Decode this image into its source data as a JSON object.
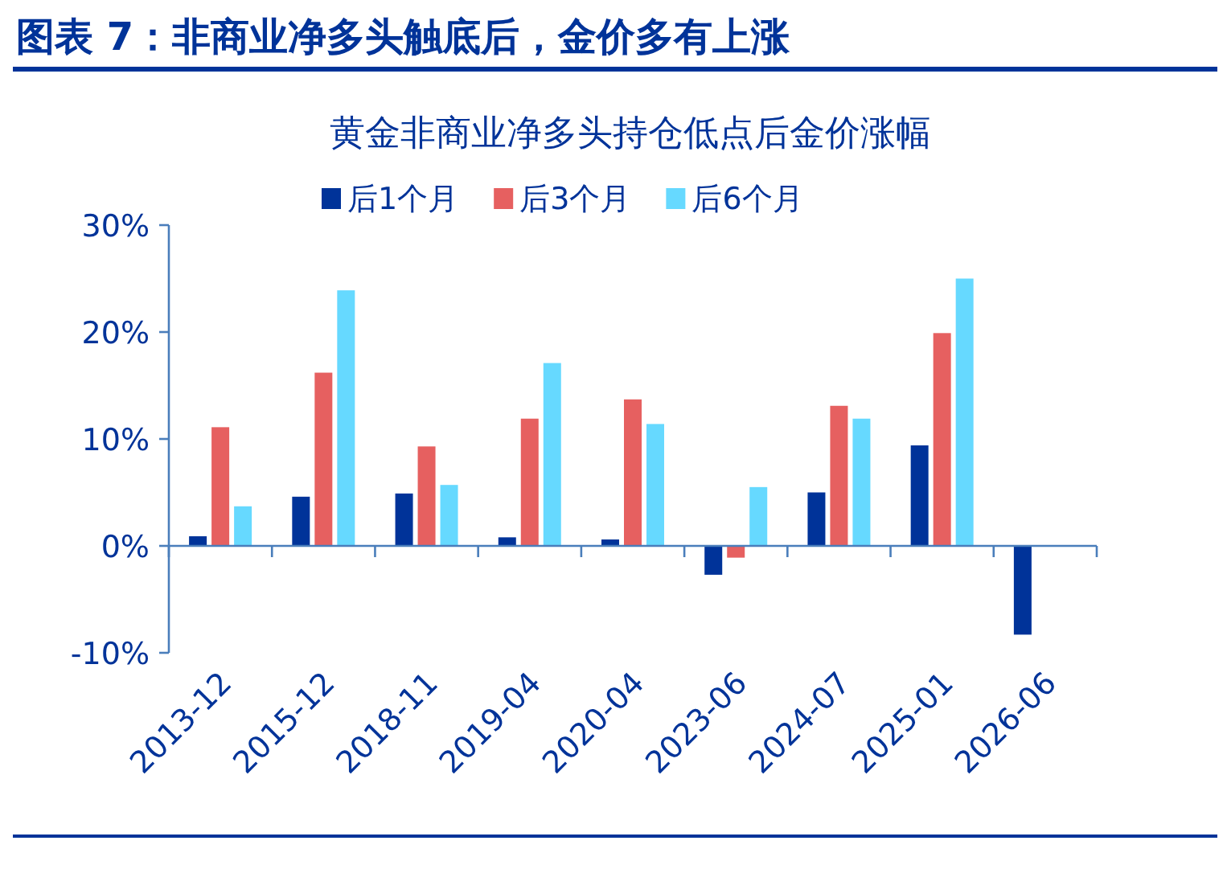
{
  "chart_data": {
    "type": "bar",
    "title": "图表 7：非商业净多头触底后，金价多有上涨",
    "subtitle": "黄金非商业净多头持仓低点后金价涨幅",
    "categories": [
      "2013-12",
      "2015-12",
      "2018-11",
      "2019-04",
      "2020-04",
      "2023-06",
      "2024-07",
      "2025-01",
      "2026-06"
    ],
    "series": [
      {
        "name": "后1个月",
        "color": "#003399",
        "values": [
          0.9,
          4.6,
          4.9,
          0.8,
          0.6,
          -2.7,
          5.0,
          9.4,
          -8.3
        ]
      },
      {
        "name": "后3个月",
        "color": "#e66060",
        "values": [
          11.1,
          16.2,
          9.3,
          11.9,
          13.7,
          -1.1,
          13.1,
          19.9,
          null
        ]
      },
      {
        "name": "后6个月",
        "color": "#66d9ff",
        "values": [
          3.7,
          23.9,
          5.7,
          17.1,
          11.4,
          5.5,
          11.9,
          25.0,
          null
        ]
      }
    ],
    "ylim": [
      -10,
      30
    ],
    "yticks": [
      {
        "value": -10,
        "label": "-10%"
      },
      {
        "value": 0,
        "label": "0%"
      },
      {
        "value": 10,
        "label": "10%"
      },
      {
        "value": 20,
        "label": "20%"
      },
      {
        "value": 30,
        "label": "30%"
      }
    ],
    "ref_lines": [
      {
        "axis": "y",
        "value": 0,
        "color": "#4a7ebb"
      }
    ],
    "grid": false,
    "legend": "top"
  }
}
